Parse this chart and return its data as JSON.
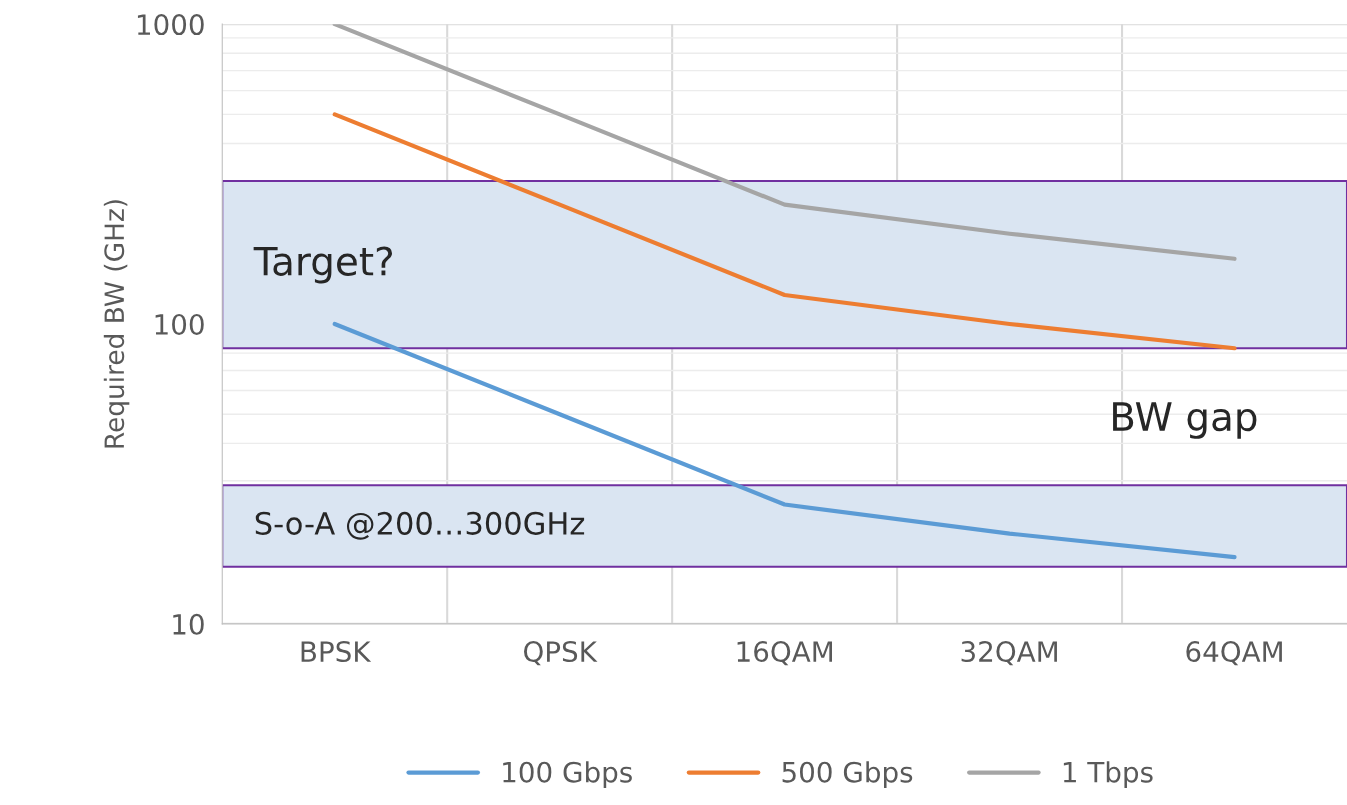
{
  "chart_data": {
    "type": "line",
    "ylabel": "Required BW (GHz)",
    "categories": [
      "BPSK",
      "QPSK",
      "16QAM",
      "32QAM",
      "64QAM"
    ],
    "series": [
      {
        "name": "100 Gbps",
        "color": "#5b9bd5",
        "values": [
          100,
          50,
          25,
          20,
          16.7
        ]
      },
      {
        "name": "500 Gbps",
        "color": "#ed7d31",
        "values": [
          500,
          250,
          125,
          100,
          83
        ]
      },
      {
        "name": "1 Tbps",
        "color": "#a5a5a5",
        "values": [
          1000,
          500,
          250,
          200,
          165
        ]
      }
    ],
    "log": "y",
    "ylim": [
      10,
      1000
    ],
    "yticks": [
      10,
      100,
      1000
    ],
    "grid": true,
    "legend": "bottom",
    "marker": "none",
    "line_style": "solid",
    "bands": [
      {
        "axis": "y",
        "from": 83,
        "to": 300,
        "label": "Target?",
        "color": "#dae5f2"
      },
      {
        "axis": "y",
        "from": 15.5,
        "to": 29,
        "label": "S-o-A @200…300GHz",
        "color": "#dae5f2"
      }
    ],
    "annotations": [
      "BW gap"
    ]
  }
}
